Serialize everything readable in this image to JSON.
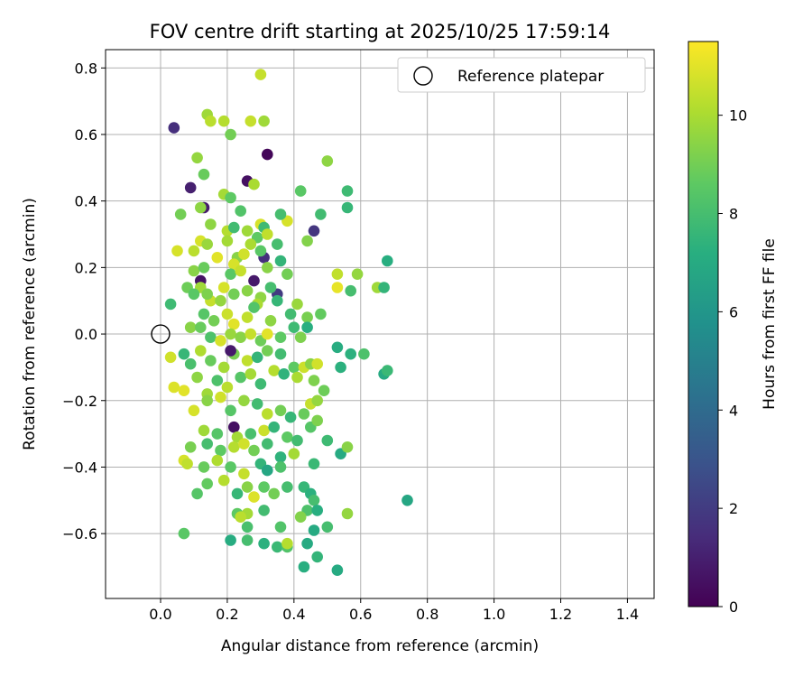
{
  "chart_data": {
    "type": "scatter",
    "title": "FOV centre drift starting at 2025/10/25 17:59:14",
    "xlabel": "Angular distance from reference (arcmin)",
    "ylabel": "Rotation from reference (arcmin)",
    "xlim": [
      -0.165,
      1.48
    ],
    "ylim": [
      -0.795,
      0.855
    ],
    "xticks": [
      0.0,
      0.2,
      0.4,
      0.6,
      0.8,
      1.0,
      1.2,
      1.4
    ],
    "xtick_labels": [
      "0.0",
      "0.2",
      "0.4",
      "0.6",
      "0.8",
      "1.0",
      "1.2",
      "1.4"
    ],
    "yticks": [
      -0.6,
      -0.4,
      -0.2,
      0.0,
      0.2,
      0.4,
      0.6,
      0.8
    ],
    "ytick_labels": [
      "−0.6",
      "−0.4",
      "−0.2",
      "0.0",
      "0.2",
      "0.4",
      "0.6",
      "0.8"
    ],
    "grid": true,
    "legend": {
      "position": "top-right",
      "label": "Reference platepar"
    },
    "reference_point": [
      0.0,
      0.0
    ],
    "colorbar": {
      "label": "Hours from first FF file",
      "range": [
        0,
        11.5
      ],
      "ticks": [
        0,
        2,
        4,
        6,
        8,
        10
      ],
      "tick_labels": [
        "0",
        "2",
        "4",
        "6",
        "8",
        "10"
      ],
      "colormap": "viridis"
    },
    "series": [
      {
        "name": "FF files",
        "points": [
          [
            0.04,
            0.62,
            1.5
          ],
          [
            0.32,
            0.54,
            0.2
          ],
          [
            0.09,
            0.44,
            1.0
          ],
          [
            0.26,
            0.46,
            0.5
          ],
          [
            0.46,
            0.31,
            1.8
          ],
          [
            0.28,
            0.16,
            0.8
          ],
          [
            0.31,
            0.23,
            1.5
          ],
          [
            0.35,
            0.12,
            2.0
          ],
          [
            0.13,
            0.38,
            0.9
          ],
          [
            0.12,
            0.16,
            0.6
          ],
          [
            0.3,
            0.78,
            10.5
          ],
          [
            0.14,
            0.66,
            9.8
          ],
          [
            0.15,
            0.64,
            10.3
          ],
          [
            0.19,
            0.64,
            10.2
          ],
          [
            0.27,
            0.64,
            10.5
          ],
          [
            0.31,
            0.64,
            9.8
          ],
          [
            0.21,
            0.6,
            9.0
          ],
          [
            0.5,
            0.52,
            9.5
          ],
          [
            0.11,
            0.53,
            9.6
          ],
          [
            0.13,
            0.48,
            8.8
          ],
          [
            0.28,
            0.45,
            10.0
          ],
          [
            0.19,
            0.42,
            9.9
          ],
          [
            0.21,
            0.41,
            8.6
          ],
          [
            0.42,
            0.43,
            8.5
          ],
          [
            0.56,
            0.43,
            7.8
          ],
          [
            0.06,
            0.36,
            9.0
          ],
          [
            0.12,
            0.38,
            9.5
          ],
          [
            0.24,
            0.37,
            8.3
          ],
          [
            0.38,
            0.34,
            10.8
          ],
          [
            0.48,
            0.36,
            7.9
          ],
          [
            0.56,
            0.38,
            7.6
          ],
          [
            0.3,
            0.33,
            10.8
          ],
          [
            0.31,
            0.32,
            7.8
          ],
          [
            0.36,
            0.36,
            8.0
          ],
          [
            0.15,
            0.33,
            9.5
          ],
          [
            0.2,
            0.31,
            10.2
          ],
          [
            0.22,
            0.32,
            7.9
          ],
          [
            0.26,
            0.31,
            9.8
          ],
          [
            0.29,
            0.29,
            8.6
          ],
          [
            0.32,
            0.3,
            10.4
          ],
          [
            0.35,
            0.27,
            8.0
          ],
          [
            0.44,
            0.28,
            9.3
          ],
          [
            0.05,
            0.25,
            10.8
          ],
          [
            0.1,
            0.25,
            10.3
          ],
          [
            0.12,
            0.28,
            10.8
          ],
          [
            0.14,
            0.27,
            9.7
          ],
          [
            0.17,
            0.23,
            11.0
          ],
          [
            0.2,
            0.28,
            9.9
          ],
          [
            0.23,
            0.23,
            9.4
          ],
          [
            0.25,
            0.24,
            10.7
          ],
          [
            0.27,
            0.27,
            10.0
          ],
          [
            0.3,
            0.25,
            8.5
          ],
          [
            0.36,
            0.22,
            7.5
          ],
          [
            0.22,
            0.21,
            10.8
          ],
          [
            0.1,
            0.19,
            9.4
          ],
          [
            0.13,
            0.2,
            8.8
          ],
          [
            0.21,
            0.18,
            8.5
          ],
          [
            0.24,
            0.19,
            10.5
          ],
          [
            0.32,
            0.2,
            9.4
          ],
          [
            0.38,
            0.18,
            9.0
          ],
          [
            0.53,
            0.18,
            10.4
          ],
          [
            0.59,
            0.18,
            9.6
          ],
          [
            0.68,
            0.22,
            7.2
          ],
          [
            0.08,
            0.14,
            8.9
          ],
          [
            0.12,
            0.14,
            9.8
          ],
          [
            0.15,
            0.1,
            10.5
          ],
          [
            0.19,
            0.14,
            10.8
          ],
          [
            0.26,
            0.13,
            9.4
          ],
          [
            0.3,
            0.11,
            9.5
          ],
          [
            0.33,
            0.14,
            8.0
          ],
          [
            0.03,
            0.09,
            7.8
          ],
          [
            0.1,
            0.12,
            8.5
          ],
          [
            0.14,
            0.12,
            9.2
          ],
          [
            0.18,
            0.1,
            9.6
          ],
          [
            0.22,
            0.12,
            9.0
          ],
          [
            0.29,
            0.09,
            10.0
          ],
          [
            0.35,
            0.1,
            7.6
          ],
          [
            0.41,
            0.09,
            9.7
          ],
          [
            0.53,
            0.14,
            11.1
          ],
          [
            0.57,
            0.13,
            8.0
          ],
          [
            0.65,
            0.14,
            9.8
          ],
          [
            0.67,
            0.14,
            7.5
          ],
          [
            0.09,
            0.02,
            9.4
          ],
          [
            0.13,
            0.06,
            8.4
          ],
          [
            0.16,
            0.04,
            9.0
          ],
          [
            0.2,
            0.06,
            10.6
          ],
          [
            0.22,
            0.03,
            11.0
          ],
          [
            0.26,
            0.05,
            10.4
          ],
          [
            0.28,
            0.08,
            8.3
          ],
          [
            0.33,
            0.04,
            9.5
          ],
          [
            0.39,
            0.06,
            7.9
          ],
          [
            0.44,
            0.05,
            9.1
          ],
          [
            0.48,
            0.06,
            8.7
          ],
          [
            0.12,
            0.02,
            8.8
          ],
          [
            0.15,
            -0.01,
            8.2
          ],
          [
            0.18,
            -0.02,
            10.8
          ],
          [
            0.21,
            0.0,
            9.7
          ],
          [
            0.24,
            -0.01,
            9.4
          ],
          [
            0.27,
            0.0,
            10.5
          ],
          [
            0.3,
            -0.02,
            8.9
          ],
          [
            0.32,
            0.0,
            11.0
          ],
          [
            0.36,
            -0.01,
            8.6
          ],
          [
            0.4,
            0.02,
            7.8
          ],
          [
            0.42,
            -0.01,
            9.2
          ],
          [
            0.44,
            0.02,
            7.2
          ],
          [
            0.03,
            -0.07,
            10.7
          ],
          [
            0.07,
            -0.06,
            7.6
          ],
          [
            0.09,
            -0.09,
            8.1
          ],
          [
            0.12,
            -0.05,
            10.1
          ],
          [
            0.15,
            -0.08,
            8.8
          ],
          [
            0.19,
            -0.1,
            9.9
          ],
          [
            0.22,
            -0.06,
            9.1
          ],
          [
            0.26,
            -0.08,
            10.4
          ],
          [
            0.29,
            -0.07,
            7.5
          ],
          [
            0.32,
            -0.05,
            9.0
          ],
          [
            0.36,
            -0.06,
            7.9
          ],
          [
            0.4,
            -0.1,
            8.6
          ],
          [
            0.43,
            -0.1,
            10.6
          ],
          [
            0.45,
            -0.09,
            9.4
          ],
          [
            0.47,
            -0.09,
            10.7
          ],
          [
            0.53,
            -0.04,
            7.1
          ],
          [
            0.57,
            -0.06,
            7.3
          ],
          [
            0.61,
            -0.06,
            8.2
          ],
          [
            0.67,
            -0.12,
            7.0
          ],
          [
            0.68,
            -0.11,
            7.7
          ],
          [
            0.04,
            -0.16,
            10.9
          ],
          [
            0.07,
            -0.17,
            11.0
          ],
          [
            0.11,
            -0.13,
            9.5
          ],
          [
            0.14,
            -0.18,
            9.8
          ],
          [
            0.17,
            -0.14,
            8.2
          ],
          [
            0.2,
            -0.16,
            10.3
          ],
          [
            0.24,
            -0.13,
            8.4
          ],
          [
            0.27,
            -0.12,
            9.9
          ],
          [
            0.3,
            -0.15,
            7.8
          ],
          [
            0.34,
            -0.11,
            10.2
          ],
          [
            0.37,
            -0.12,
            7.4
          ],
          [
            0.41,
            -0.13,
            10.0
          ],
          [
            0.46,
            -0.14,
            9.2
          ],
          [
            0.49,
            -0.17,
            8.9
          ],
          [
            0.54,
            -0.1,
            7.3
          ],
          [
            0.1,
            -0.23,
            10.8
          ],
          [
            0.14,
            -0.2,
            9.4
          ],
          [
            0.18,
            -0.19,
            10.7
          ],
          [
            0.21,
            -0.23,
            8.4
          ],
          [
            0.25,
            -0.2,
            9.6
          ],
          [
            0.29,
            -0.21,
            7.9
          ],
          [
            0.32,
            -0.24,
            10.3
          ],
          [
            0.36,
            -0.23,
            9.0
          ],
          [
            0.39,
            -0.25,
            7.6
          ],
          [
            0.43,
            -0.24,
            8.8
          ],
          [
            0.45,
            -0.21,
            10.5
          ],
          [
            0.47,
            -0.2,
            9.6
          ],
          [
            0.22,
            -0.28,
            0.5
          ],
          [
            0.13,
            -0.29,
            9.8
          ],
          [
            0.17,
            -0.3,
            8.4
          ],
          [
            0.23,
            -0.31,
            9.9
          ],
          [
            0.27,
            -0.3,
            8.1
          ],
          [
            0.31,
            -0.29,
            10.6
          ],
          [
            0.34,
            -0.28,
            7.5
          ],
          [
            0.38,
            -0.31,
            8.6
          ],
          [
            0.41,
            -0.32,
            7.9
          ],
          [
            0.45,
            -0.28,
            8.4
          ],
          [
            0.47,
            -0.26,
            9.2
          ],
          [
            0.5,
            -0.32,
            7.8
          ],
          [
            0.54,
            -0.36,
            7.0
          ],
          [
            0.56,
            -0.34,
            9.4
          ],
          [
            0.09,
            -0.34,
            9.1
          ],
          [
            0.14,
            -0.33,
            8.0
          ],
          [
            0.18,
            -0.35,
            8.6
          ],
          [
            0.22,
            -0.34,
            10.2
          ],
          [
            0.25,
            -0.33,
            10.7
          ],
          [
            0.28,
            -0.35,
            9.0
          ],
          [
            0.32,
            -0.33,
            7.9
          ],
          [
            0.36,
            -0.37,
            7.4
          ],
          [
            0.4,
            -0.36,
            9.9
          ],
          [
            0.07,
            -0.38,
            10.8
          ],
          [
            0.08,
            -0.39,
            10.4
          ],
          [
            0.13,
            -0.4,
            8.8
          ],
          [
            0.17,
            -0.38,
            10.1
          ],
          [
            0.21,
            -0.4,
            8.5
          ],
          [
            0.25,
            -0.42,
            10.5
          ],
          [
            0.3,
            -0.39,
            7.5
          ],
          [
            0.32,
            -0.41,
            6.8
          ],
          [
            0.36,
            -0.4,
            8.2
          ],
          [
            0.46,
            -0.39,
            7.7
          ],
          [
            0.11,
            -0.48,
            8.4
          ],
          [
            0.14,
            -0.45,
            8.7
          ],
          [
            0.19,
            -0.44,
            10.2
          ],
          [
            0.23,
            -0.48,
            7.6
          ],
          [
            0.26,
            -0.46,
            9.4
          ],
          [
            0.28,
            -0.49,
            10.9
          ],
          [
            0.31,
            -0.46,
            8.6
          ],
          [
            0.34,
            -0.48,
            9.0
          ],
          [
            0.38,
            -0.46,
            8.0
          ],
          [
            0.43,
            -0.46,
            7.6
          ],
          [
            0.45,
            -0.48,
            7.3
          ],
          [
            0.46,
            -0.5,
            8.0
          ],
          [
            0.31,
            -0.53,
            7.9
          ],
          [
            0.23,
            -0.54,
            8.6
          ],
          [
            0.26,
            -0.54,
            9.9
          ],
          [
            0.24,
            -0.55,
            10.3
          ],
          [
            0.44,
            -0.53,
            8.2
          ],
          [
            0.47,
            -0.53,
            7.2
          ],
          [
            0.56,
            -0.54,
            9.6
          ],
          [
            0.74,
            -0.5,
            6.8
          ],
          [
            0.07,
            -0.6,
            8.5
          ],
          [
            0.26,
            -0.58,
            8.1
          ],
          [
            0.36,
            -0.58,
            8.3
          ],
          [
            0.42,
            -0.55,
            9.3
          ],
          [
            0.46,
            -0.59,
            7.0
          ],
          [
            0.5,
            -0.58,
            8.0
          ],
          [
            0.21,
            -0.62,
            7.1
          ],
          [
            0.26,
            -0.62,
            8.0
          ],
          [
            0.31,
            -0.63,
            7.3
          ],
          [
            0.35,
            -0.64,
            7.7
          ],
          [
            0.38,
            -0.64,
            8.3
          ],
          [
            0.38,
            -0.63,
            10.2
          ],
          [
            0.44,
            -0.63,
            7.0
          ],
          [
            0.43,
            -0.7,
            7.2
          ],
          [
            0.47,
            -0.67,
            7.5
          ],
          [
            0.53,
            -0.71,
            7.0
          ],
          [
            0.21,
            -0.05,
            0.8
          ]
        ]
      }
    ]
  }
}
